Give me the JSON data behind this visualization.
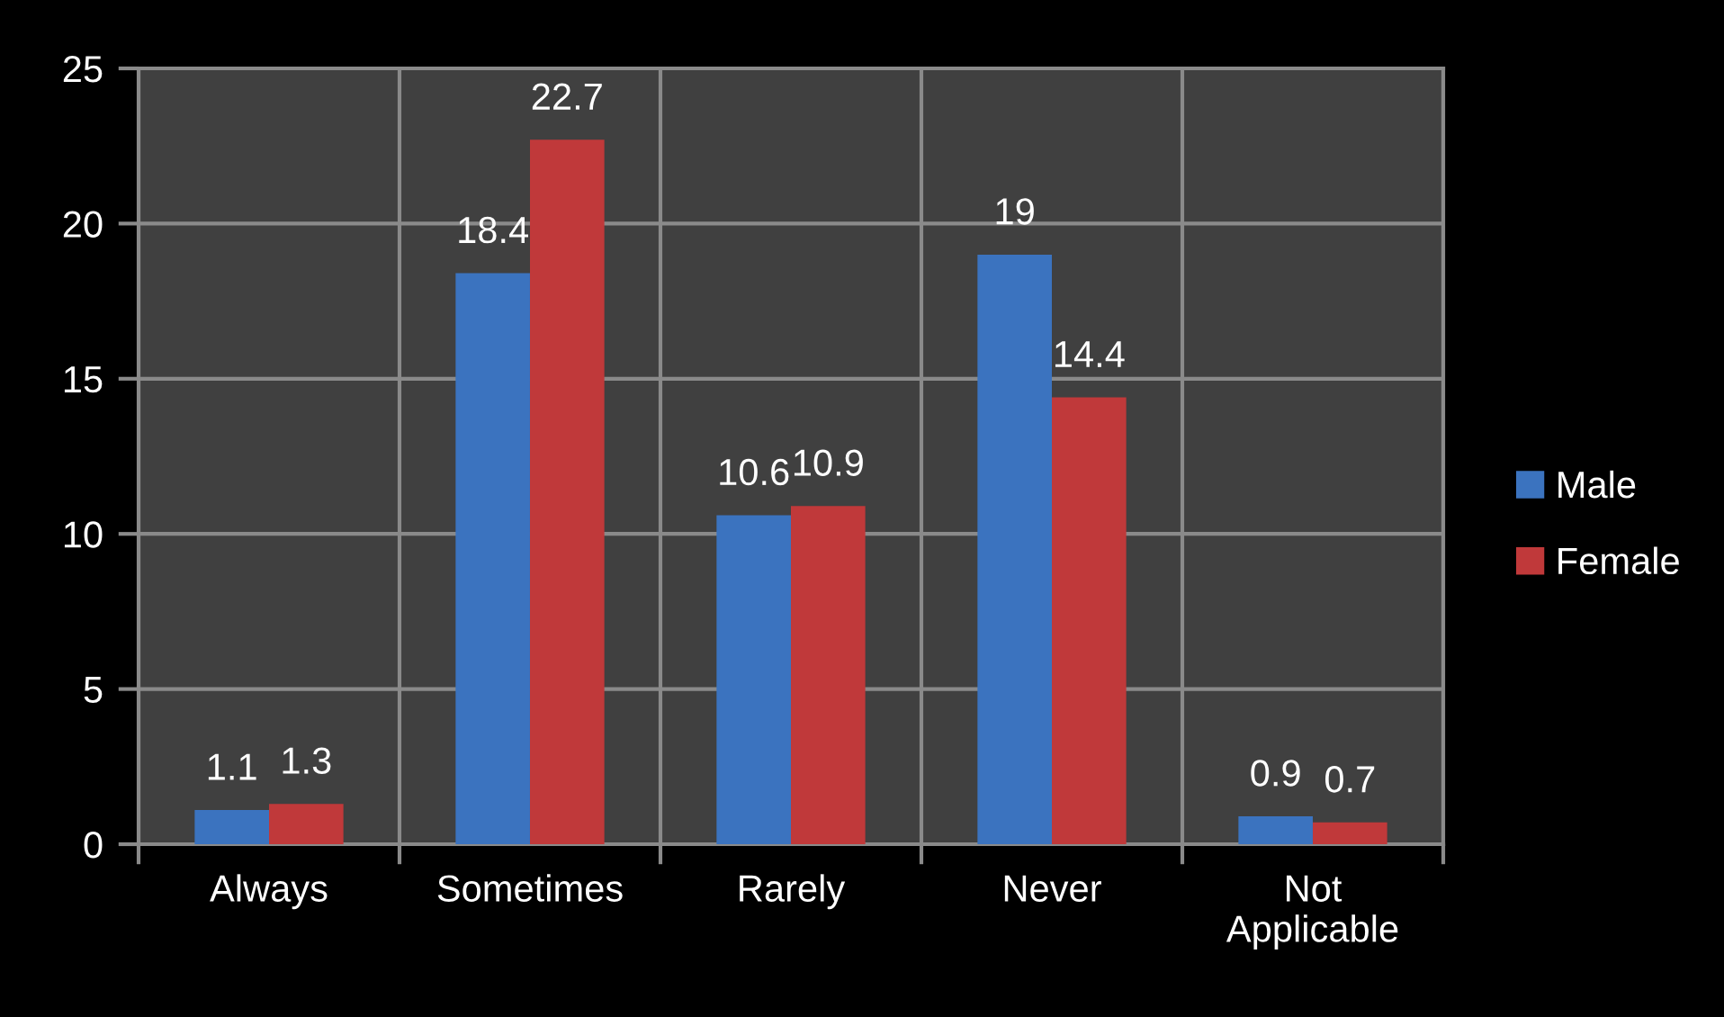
{
  "chart_data": {
    "type": "bar",
    "categories": [
      "Always",
      "Sometimes",
      "Rarely",
      "Never",
      "Not\nApplicable"
    ],
    "series": [
      {
        "name": "Male",
        "color": "#3b73bf",
        "values": [
          1.1,
          18.4,
          10.6,
          19,
          0.9
        ]
      },
      {
        "name": "Female",
        "color": "#c0393a",
        "values": [
          1.3,
          22.7,
          10.9,
          14.4,
          0.7
        ]
      }
    ],
    "ylim": [
      0,
      25
    ],
    "yticks": [
      0,
      5,
      10,
      15,
      20,
      25
    ],
    "grid": true,
    "legend": "right",
    "data_labels": true
  }
}
